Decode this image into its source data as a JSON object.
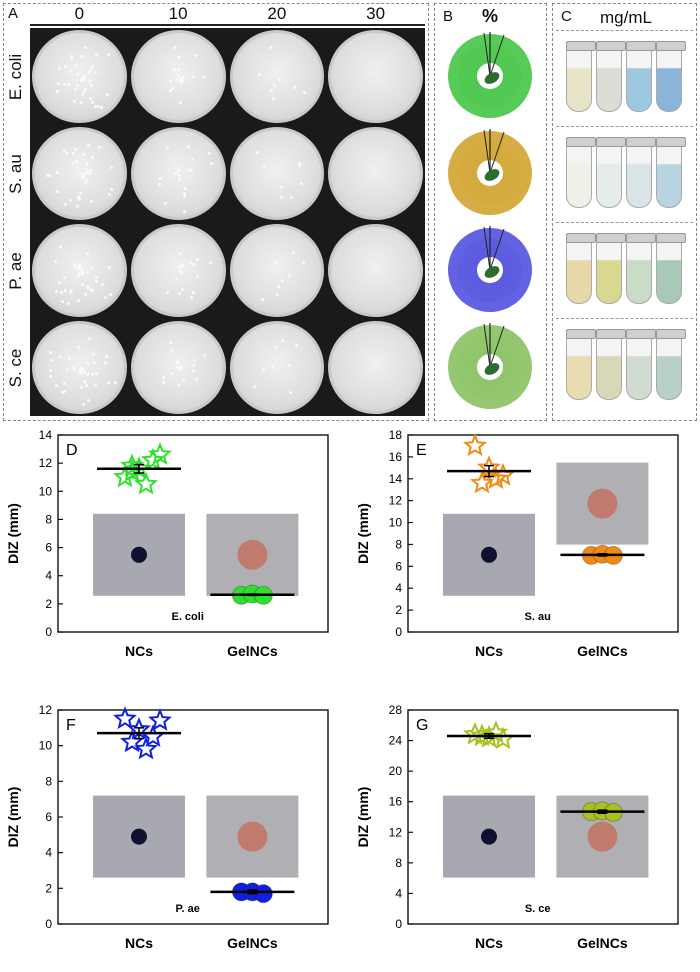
{
  "panel_a": {
    "letter": "A",
    "columns": [
      "0",
      "10",
      "20",
      "30"
    ],
    "rows": [
      "E. coli",
      "S. au",
      "P. ae",
      "S. ce"
    ]
  },
  "panel_b": {
    "letter": "B",
    "unit": "%",
    "rings": [
      {
        "color": "#4ec84e"
      },
      {
        "color": "#d4a93a"
      },
      {
        "color": "#5a5ae0"
      },
      {
        "color": "#8fc46a"
      }
    ]
  },
  "panel_c": {
    "letter": "C",
    "unit": "mg/mL",
    "rows": [
      {
        "colors": [
          "#e8e4c8",
          "#dcdcd4",
          "#9ec8e0",
          "#8ab4d8"
        ]
      },
      {
        "colors": [
          "#f0f0e8",
          "#e4ecec",
          "#d8e4e8",
          "#b8d4e0"
        ]
      },
      {
        "colors": [
          "#e8d8a8",
          "#d8d890",
          "#c8dcc8",
          "#a8c8b8"
        ]
      },
      {
        "colors": [
          "#e8dcb0",
          "#d8d8b8",
          "#d0dcd0",
          "#b8d0c8"
        ]
      }
    ]
  },
  "chart_data": [
    {
      "type": "scatter",
      "letter": "D",
      "label": "E. coli",
      "ylabel": "DIZ (mm)",
      "categories": [
        "NCs",
        "GelNCs"
      ],
      "ylim": [
        0,
        14
      ],
      "yticks": [
        0,
        2,
        4,
        6,
        8,
        10,
        12,
        14
      ],
      "color": "#2ee02e",
      "series": [
        {
          "category": "NCs",
          "marker": "star",
          "points": [
            11.0,
            11.6,
            12.2,
            11.4,
            10.5,
            12.6,
            11.8
          ],
          "mean": 11.6,
          "err": 0.3
        },
        {
          "category": "GelNCs",
          "marker": "circle",
          "points": [
            2.6,
            2.7,
            2.6
          ],
          "mean": 2.65,
          "err": 0.05
        }
      ]
    },
    {
      "type": "scatter",
      "letter": "E",
      "label": "S. au",
      "ylabel": "DIZ (mm)",
      "categories": [
        "NCs",
        "GelNCs"
      ],
      "ylim": [
        0,
        18
      ],
      "yticks": [
        0,
        2,
        4,
        6,
        8,
        10,
        12,
        14,
        16,
        18
      ],
      "color": "#f08a14",
      "series": [
        {
          "category": "NCs",
          "marker": "star",
          "points": [
            17.0,
            15.0,
            14.3,
            13.6,
            14.0
          ],
          "mean": 14.7,
          "err": 0.5
        },
        {
          "category": "GelNCs",
          "marker": "circle",
          "points": [
            7.0,
            7.1,
            7.0
          ],
          "mean": 7.05,
          "err": 0.1
        }
      ]
    },
    {
      "type": "scatter",
      "letter": "F",
      "label": "P. ae",
      "ylabel": "DIZ (mm)",
      "categories": [
        "NCs",
        "GelNCs"
      ],
      "ylim": [
        0,
        12
      ],
      "yticks": [
        0,
        2,
        4,
        6,
        8,
        10,
        12
      ],
      "color": "#1020e0",
      "series": [
        {
          "category": "NCs",
          "marker": "star",
          "points": [
            11.5,
            10.9,
            10.5,
            10.2,
            9.8,
            11.4
          ],
          "mean": 10.7,
          "err": 0.3
        },
        {
          "category": "GelNCs",
          "marker": "circle",
          "points": [
            1.8,
            1.8,
            1.7
          ],
          "mean": 1.8,
          "err": 0.1
        }
      ]
    },
    {
      "type": "scatter",
      "letter": "G",
      "label": "S. ce",
      "ylabel": "DIZ (mm)",
      "categories": [
        "NCs",
        "GelNCs"
      ],
      "ylim": [
        0,
        28
      ],
      "yticks": [
        0,
        4,
        8,
        12,
        16,
        20,
        24,
        28
      ],
      "color": "#a8c020",
      "series": [
        {
          "category": "NCs",
          "marker": "star",
          "points": [
            24.8,
            24.4,
            24.2,
            24.6,
            25.0
          ],
          "mean": 24.6,
          "err": 0.3
        },
        {
          "category": "GelNCs",
          "marker": "circle",
          "points": [
            14.7,
            14.8,
            14.6
          ],
          "mean": 14.7,
          "err": 0.2
        }
      ]
    }
  ]
}
